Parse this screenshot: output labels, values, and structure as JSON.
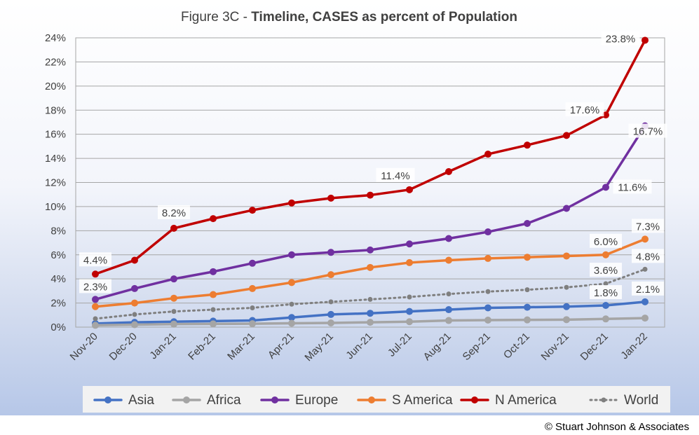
{
  "chart_data": {
    "type": "line",
    "title_prefix": "Figure 3C - ",
    "title_bold": "Timeline, CASES as percent of Population",
    "categories": [
      "Nov-20",
      "Dec-20",
      "Jan-21",
      "Feb-21",
      "Mar-21",
      "Apr-21",
      "May-21",
      "Jun-21",
      "Jul-21",
      "Aug-21",
      "Sep-21",
      "Oct-21",
      "Nov-21",
      "Dec-21",
      "Jan-22"
    ],
    "ylim": [
      0,
      24
    ],
    "y_ticks": [
      0,
      2,
      4,
      6,
      8,
      10,
      12,
      14,
      16,
      18,
      20,
      22,
      24
    ],
    "y_tick_labels": [
      "0%",
      "2%",
      "4%",
      "6%",
      "8%",
      "10%",
      "12%",
      "14%",
      "16%",
      "18%",
      "20%",
      "22%",
      "24%"
    ],
    "grid": "horizontal",
    "legend_position": "bottom",
    "series": [
      {
        "name": "Asia",
        "color": "#4472c4",
        "style": "solid",
        "values": [
          0.3,
          0.4,
          0.45,
          0.5,
          0.55,
          0.8,
          1.05,
          1.15,
          1.3,
          1.45,
          1.6,
          1.65,
          1.7,
          1.8,
          2.1
        ],
        "labels": [
          {
            "index": 13,
            "text": "1.8%"
          },
          {
            "index": 14,
            "text": "2.1%"
          }
        ]
      },
      {
        "name": "Africa",
        "color": "#a5a5a5",
        "style": "solid",
        "values": [
          0.15,
          0.2,
          0.25,
          0.27,
          0.28,
          0.32,
          0.35,
          0.4,
          0.45,
          0.55,
          0.58,
          0.6,
          0.62,
          0.68,
          0.75
        ],
        "labels": []
      },
      {
        "name": "Europe",
        "color": "#7030a0",
        "style": "solid",
        "values": [
          2.3,
          3.2,
          4.0,
          4.6,
          5.3,
          6.0,
          6.2,
          6.4,
          6.9,
          7.35,
          7.9,
          8.6,
          9.85,
          11.6,
          16.7
        ],
        "labels": [
          {
            "index": 0,
            "text": "2.3%"
          },
          {
            "index": 13,
            "text": "11.6%"
          },
          {
            "index": 14,
            "text": "16.7%"
          }
        ]
      },
      {
        "name": "S America",
        "color": "#ed7d31",
        "style": "solid",
        "values": [
          1.7,
          2.0,
          2.4,
          2.7,
          3.2,
          3.7,
          4.35,
          4.95,
          5.35,
          5.55,
          5.7,
          5.8,
          5.9,
          6.0,
          7.3
        ],
        "labels": [
          {
            "index": 13,
            "text": "6.0%"
          },
          {
            "index": 14,
            "text": "7.3%"
          }
        ]
      },
      {
        "name": "N America",
        "color": "#c00000",
        "style": "solid",
        "values": [
          4.4,
          5.55,
          8.2,
          9.0,
          9.7,
          10.3,
          10.7,
          10.95,
          11.4,
          12.9,
          14.35,
          15.1,
          15.9,
          17.6,
          23.8
        ],
        "labels": [
          {
            "index": 0,
            "text": "4.4%"
          },
          {
            "index": 2,
            "text": "8.2%"
          },
          {
            "index": 8,
            "text": "11.4%"
          },
          {
            "index": 13,
            "text": "17.6%"
          },
          {
            "index": 14,
            "text": "23.8%"
          }
        ]
      },
      {
        "name": "World",
        "color": "#7f7f7f",
        "style": "dotted",
        "values": [
          0.7,
          1.05,
          1.3,
          1.45,
          1.6,
          1.9,
          2.1,
          2.3,
          2.5,
          2.75,
          2.95,
          3.1,
          3.3,
          3.6,
          4.8
        ],
        "labels": [
          {
            "index": 13,
            "text": "3.6%"
          },
          {
            "index": 14,
            "text": "4.8%"
          }
        ]
      }
    ]
  },
  "copyright": "© Stuart Johnson & Associates"
}
